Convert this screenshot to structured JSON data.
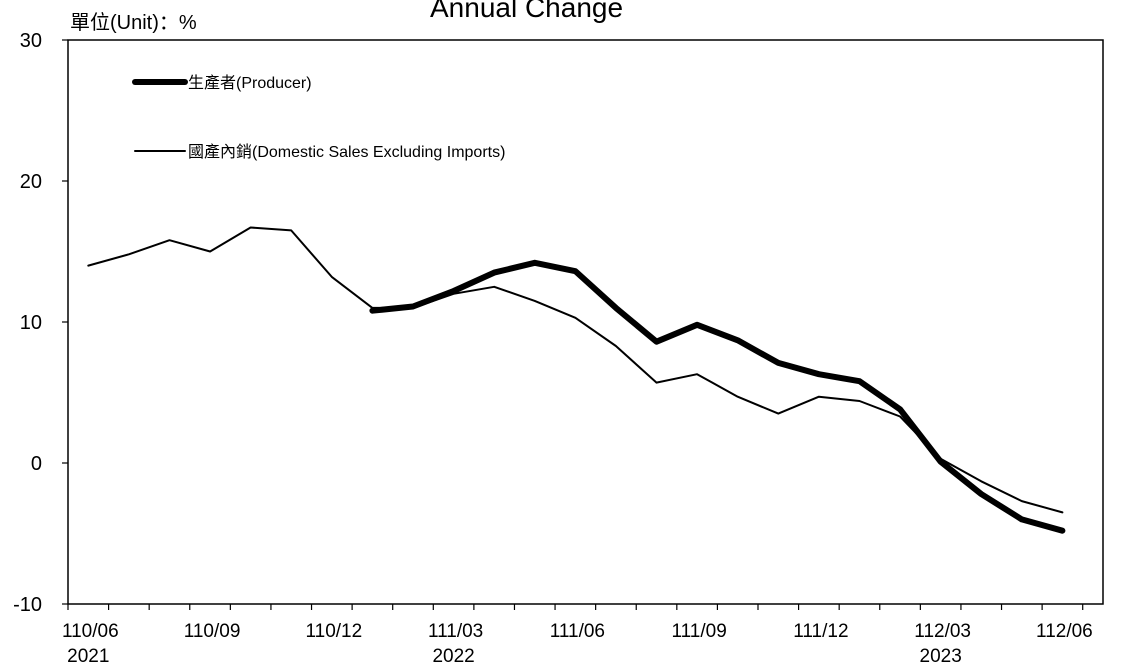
{
  "chart_data": {
    "type": "line",
    "title": "Annual Change",
    "unit_label": "單位(Unit)：%",
    "ylim": [
      -10,
      30
    ],
    "yticks": [
      "30",
      "20",
      "10",
      "0",
      "-10"
    ],
    "ytick_values": [
      30,
      20,
      10,
      0,
      -10
    ],
    "x": [
      "110/06",
      "110/07",
      "110/08",
      "110/09",
      "110/10",
      "110/11",
      "110/12",
      "111/01",
      "111/02",
      "111/03",
      "111/04",
      "111/05",
      "111/06",
      "111/07",
      "111/08",
      "111/09",
      "111/10",
      "111/11",
      "111/12",
      "112/01",
      "112/02",
      "112/03",
      "112/04",
      "112/05",
      "112/06"
    ],
    "x_tick_labels": [
      {
        "index": 0,
        "label": "110/06"
      },
      {
        "index": 3,
        "label": "110/09"
      },
      {
        "index": 6,
        "label": "110/12"
      },
      {
        "index": 9,
        "label": "111/03"
      },
      {
        "index": 12,
        "label": "111/06"
      },
      {
        "index": 15,
        "label": "111/09"
      },
      {
        "index": 18,
        "label": "111/12"
      },
      {
        "index": 21,
        "label": "112/03"
      },
      {
        "index": 24,
        "label": "112/06"
      }
    ],
    "year_labels": [
      {
        "index": 0,
        "label": "2021"
      },
      {
        "index": 9,
        "label": "2022"
      },
      {
        "index": 21,
        "label": "2023"
      }
    ],
    "legend_placement": "top-left",
    "grid": false,
    "series": [
      {
        "name": "生產者(Producer)",
        "style": "thick",
        "color": "#000000",
        "values": [
          null,
          null,
          null,
          null,
          null,
          null,
          null,
          10.8,
          11.1,
          12.2,
          13.5,
          14.2,
          13.6,
          11.0,
          8.6,
          9.8,
          8.7,
          7.1,
          6.3,
          5.8,
          3.8,
          0.1,
          -2.2,
          -4.0,
          -4.8
        ]
      },
      {
        "name": "國產內銷(Domestic Sales Excluding Imports)",
        "style": "thin",
        "color": "#000000",
        "values": [
          14.0,
          14.8,
          15.8,
          15.0,
          16.7,
          16.5,
          13.2,
          11.0,
          11.0,
          12.0,
          12.5,
          11.5,
          10.3,
          8.3,
          5.7,
          6.3,
          4.7,
          3.5,
          4.7,
          4.4,
          3.3,
          0.3,
          -1.3,
          -2.7,
          -3.5
        ]
      }
    ]
  }
}
